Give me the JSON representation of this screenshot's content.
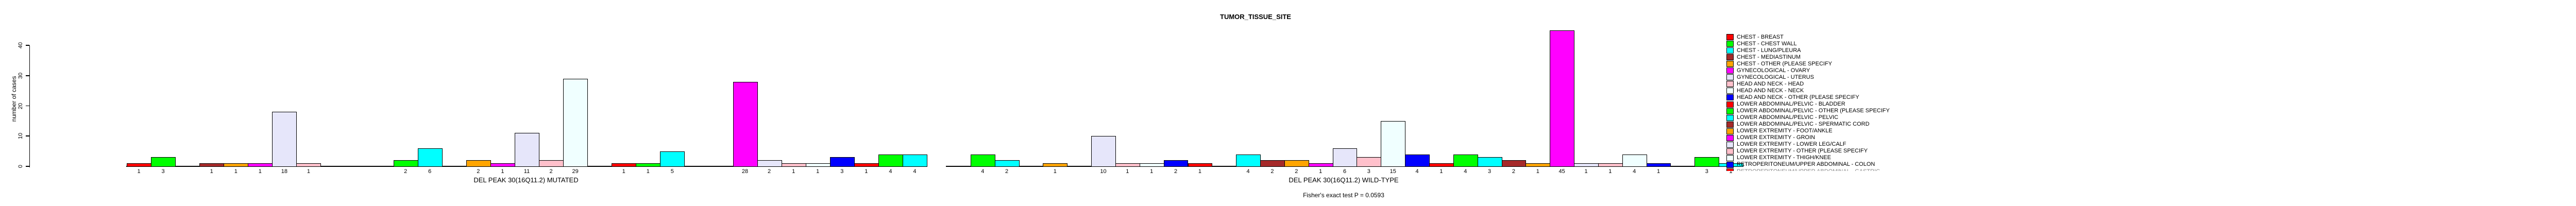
{
  "title": "TUMOR_TISSUE_SITE",
  "y_axis": {
    "label": "number of cases",
    "tick_labels": [
      "0",
      "10",
      "20",
      "30",
      "40"
    ]
  },
  "footer": "Fisher's exact test P = 0.0593",
  "chart_data": {
    "type": "bar",
    "title": "TUMOR_TISSUE_SITE",
    "xlabel": "",
    "ylabel": "number of cases",
    "ylim": [
      0,
      45
    ],
    "yticks": [
      0,
      10,
      20,
      30,
      40
    ],
    "grid": false,
    "legend_position": "right",
    "n_category_slots": 33,
    "color_cycle": [
      "#FF0000",
      "#00FF00",
      "#00FFFF",
      "#A52A2A",
      "#FFA500",
      "#FF00FF",
      "#E6E6FA",
      "#FFC0CB",
      "#F0FFFF",
      "#0000FF"
    ],
    "bar_value_labels_shown": true,
    "zero_counts_shown_as_gaps": true,
    "groups": [
      {
        "label": "DEL PEAK 30(16Q11.2) MUTATED",
        "values": [
          1,
          3,
          0,
          1,
          1,
          1,
          18,
          1,
          0,
          0,
          0,
          2,
          6,
          0,
          2,
          1,
          11,
          2,
          29,
          0,
          1,
          1,
          5,
          0,
          0,
          28,
          2,
          1,
          1,
          3,
          1,
          4,
          4
        ]
      },
      {
        "label": "DEL PEAK 30(16Q11.2) WILD-TYPE",
        "values": [
          0,
          4,
          2,
          0,
          1,
          0,
          10,
          1,
          1,
          2,
          1,
          0,
          4,
          2,
          2,
          1,
          6,
          3,
          15,
          4,
          1,
          4,
          3,
          2,
          1,
          45,
          1,
          1,
          4,
          1,
          0,
          3,
          1
        ]
      }
    ],
    "legend": {
      "items": [
        {
          "label": "CHEST - BREAST",
          "color": "#FF0000"
        },
        {
          "label": "CHEST - CHEST WALL",
          "color": "#00FF00"
        },
        {
          "label": "CHEST - LUNG/PLEURA",
          "color": "#00FFFF"
        },
        {
          "label": "CHEST - MEDIASTINUM",
          "color": "#A52A2A"
        },
        {
          "label": "CHEST - OTHER (PLEASE SPECIFY",
          "color": "#FFA500"
        },
        {
          "label": "GYNECOLOGICAL - OVARY",
          "color": "#FF00FF"
        },
        {
          "label": "GYNECOLOGICAL - UTERUS",
          "color": "#E6E6FA"
        },
        {
          "label": "HEAD AND NECK - HEAD",
          "color": "#FFC0CB"
        },
        {
          "label": "HEAD AND NECK - NECK",
          "color": "#F0FFFF"
        },
        {
          "label": "HEAD AND NECK - OTHER (PLEASE SPECIFY",
          "color": "#0000FF"
        },
        {
          "label": "LOWER ABDOMINAL/PELVIC - BLADDER",
          "color": "#FF0000"
        },
        {
          "label": "LOWER ABDOMINAL/PELVIC - OTHER (PLEASE SPECIFY",
          "color": "#00FF00"
        },
        {
          "label": "LOWER ABDOMINAL/PELVIC - PELVIC",
          "color": "#00FFFF"
        },
        {
          "label": "LOWER ABDOMINAL/PELVIC - SPERMATIC CORD",
          "color": "#A52A2A"
        },
        {
          "label": "LOWER EXTREMITY - FOOT/ANKLE",
          "color": "#FFA500"
        },
        {
          "label": "LOWER EXTREMITY - GROIN",
          "color": "#FF00FF"
        },
        {
          "label": "LOWER EXTREMITY - LOWER LEG/CALF",
          "color": "#E6E6FA"
        },
        {
          "label": "LOWER EXTREMITY - OTHER (PLEASE SPECIFY",
          "color": "#FFC0CB"
        },
        {
          "label": "LOWER EXTREMITY - THIGH/KNEE",
          "color": "#F0FFFF"
        },
        {
          "label": "RETROPERITONEUM/UPPER ABDOMINAL - COLON",
          "color": "#0000FF"
        }
      ],
      "clipped_item": {
        "label": "RETROPERITONEUM/UPPER ABDOMINAL - GASTRIC",
        "color": "#FF0000"
      }
    }
  }
}
